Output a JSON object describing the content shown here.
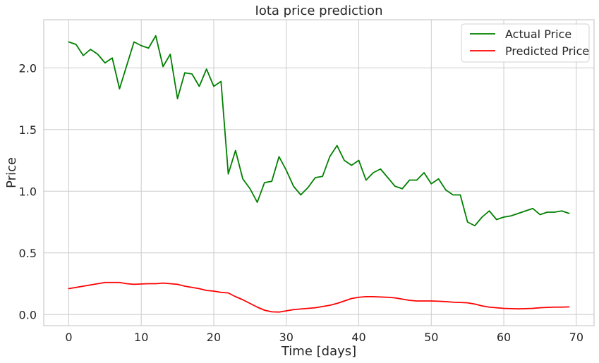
{
  "chart_data": {
    "type": "line",
    "title": "Iota price prediction",
    "xlabel": "Time [days]",
    "ylabel": "Price",
    "xlim": [
      -3.45,
      72.45
    ],
    "ylim": [
      -0.09,
      2.39
    ],
    "xticks": [
      0,
      10,
      20,
      30,
      40,
      50,
      60,
      70
    ],
    "yticks": [
      0.0,
      0.5,
      1.0,
      1.5,
      2.0
    ],
    "xtick_labels": [
      "0",
      "10",
      "20",
      "30",
      "40",
      "50",
      "60",
      "70"
    ],
    "ytick_labels": [
      "0.0",
      "0.5",
      "1.0",
      "1.5",
      "2.0"
    ],
    "grid": true,
    "legend_position": "top-right",
    "series": [
      {
        "name": "Actual Price",
        "color": "#008000",
        "values": [
          2.21,
          2.19,
          2.1,
          2.15,
          2.11,
          2.04,
          2.08,
          1.83,
          2.02,
          2.21,
          2.18,
          2.16,
          2.26,
          2.01,
          2.11,
          1.75,
          1.96,
          1.95,
          1.85,
          1.99,
          1.85,
          1.89,
          1.14,
          1.33,
          1.1,
          1.02,
          0.91,
          1.07,
          1.08,
          1.28,
          1.17,
          1.04,
          0.97,
          1.03,
          1.11,
          1.12,
          1.28,
          1.37,
          1.25,
          1.21,
          1.25,
          1.09,
          1.15,
          1.18,
          1.11,
          1.04,
          1.02,
          1.09,
          1.09,
          1.15,
          1.06,
          1.1,
          1.01,
          0.97,
          0.97,
          0.75,
          0.72,
          0.79,
          0.84,
          0.77,
          0.79,
          0.8,
          0.82,
          0.84,
          0.86,
          0.81,
          0.83,
          0.83,
          0.84,
          0.82
        ]
      },
      {
        "name": "Predicted Price",
        "color": "#ff0000",
        "values": [
          0.21,
          0.22,
          0.23,
          0.24,
          0.25,
          0.26,
          0.26,
          0.26,
          0.25,
          0.245,
          0.248,
          0.25,
          0.25,
          0.255,
          0.25,
          0.245,
          0.23,
          0.22,
          0.21,
          0.195,
          0.19,
          0.18,
          0.175,
          0.145,
          0.12,
          0.09,
          0.06,
          0.035,
          0.022,
          0.02,
          0.03,
          0.04,
          0.045,
          0.05,
          0.055,
          0.065,
          0.075,
          0.09,
          0.11,
          0.13,
          0.14,
          0.145,
          0.145,
          0.142,
          0.14,
          0.135,
          0.125,
          0.115,
          0.11,
          0.11,
          0.11,
          0.108,
          0.105,
          0.1,
          0.098,
          0.095,
          0.085,
          0.07,
          0.06,
          0.055,
          0.05,
          0.048,
          0.046,
          0.048,
          0.05,
          0.055,
          0.058,
          0.06,
          0.06,
          0.062
        ]
      }
    ]
  }
}
